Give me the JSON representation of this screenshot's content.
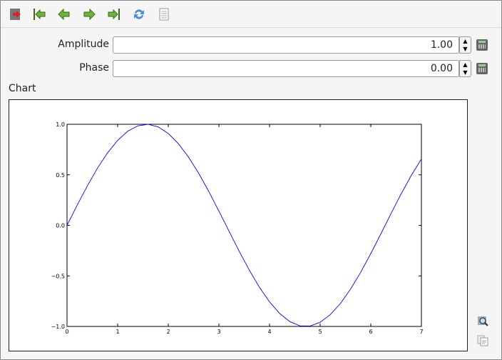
{
  "toolbar": {
    "icons": [
      "exit-icon",
      "first-icon",
      "previous-icon",
      "next-icon",
      "last-icon",
      "refresh-icon",
      "document-icon"
    ]
  },
  "params": [
    {
      "label": "Amplitude",
      "value": "1.00"
    },
    {
      "label": "Phase",
      "value": "0.00"
    }
  ],
  "chart": {
    "label": "Chart"
  },
  "colors": {
    "line": "#0000ff",
    "toolbar_arrow": "#6cb33f"
  },
  "chart_data": {
    "type": "line",
    "xlim": [
      0,
      7
    ],
    "ylim": [
      -1,
      1
    ],
    "xticks": [
      "0",
      "1",
      "2",
      "3",
      "4",
      "5",
      "6",
      "7"
    ],
    "yticks": [
      "−1.0",
      "−0.5",
      "0.0",
      "0.5",
      "1.0"
    ],
    "grid": false,
    "series": [
      {
        "x": [
          0,
          0.2,
          0.4,
          0.6,
          0.8,
          1.0,
          1.2,
          1.4,
          1.6,
          1.8,
          2.0,
          2.2,
          2.4,
          2.6,
          2.8,
          3.0,
          3.2,
          3.4,
          3.6,
          3.8,
          4.0,
          4.2,
          4.4,
          4.6,
          4.8,
          5.0,
          5.2,
          5.4,
          5.6,
          5.8,
          6.0,
          6.2,
          6.4,
          6.6,
          6.8,
          7.0
        ],
        "y": [
          0,
          0.199,
          0.389,
          0.565,
          0.717,
          0.841,
          0.932,
          0.985,
          1.0,
          0.974,
          0.909,
          0.808,
          0.675,
          0.516,
          0.335,
          0.141,
          -0.058,
          -0.256,
          -0.443,
          -0.612,
          -0.757,
          -0.872,
          -0.952,
          -0.994,
          -0.996,
          -0.959,
          -0.883,
          -0.773,
          -0.631,
          -0.465,
          -0.279,
          -0.083,
          0.117,
          0.312,
          0.494,
          0.657
        ]
      }
    ]
  },
  "side_icons": [
    "zoom-icon",
    "copy-icon"
  ]
}
